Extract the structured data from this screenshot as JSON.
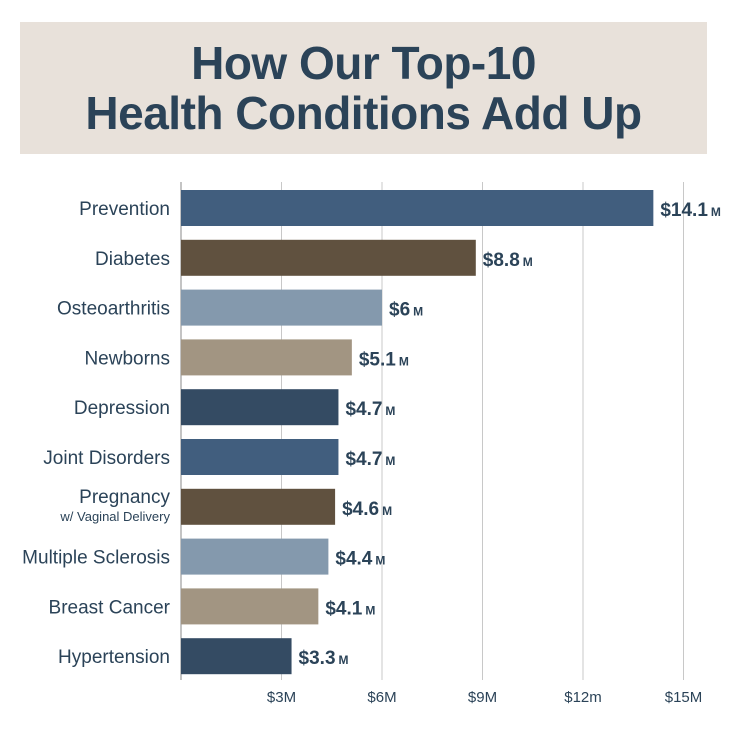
{
  "title": {
    "line1": "How Our Top-10",
    "line2": "Health Conditions Add Up"
  },
  "colors": {
    "title_bg": "#e8e1da",
    "text": "#2b4358",
    "grid": "#c8c8c8",
    "axis": "#8a8a8a"
  },
  "chart_data": {
    "type": "bar",
    "orientation": "horizontal",
    "categories": [
      {
        "label": "Prevention",
        "sub": ""
      },
      {
        "label": "Diabetes",
        "sub": ""
      },
      {
        "label": "Osteoarthritis",
        "sub": ""
      },
      {
        "label": "Newborns",
        "sub": ""
      },
      {
        "label": "Depression",
        "sub": ""
      },
      {
        "label": "Joint Disorders",
        "sub": ""
      },
      {
        "label": "Pregnancy",
        "sub": "w/ Vaginal Delivery"
      },
      {
        "label": "Multiple Sclerosis",
        "sub": ""
      },
      {
        "label": "Breast Cancer",
        "sub": ""
      },
      {
        "label": "Hypertension",
        "sub": ""
      }
    ],
    "values": [
      14.1,
      8.8,
      6,
      5.1,
      4.7,
      4.7,
      4.6,
      4.4,
      4.1,
      3.3
    ],
    "value_labels": [
      "$14.1",
      "$8.8",
      "$6",
      "$5.1",
      "$4.7",
      "$4.7",
      "$4.6",
      "$4.4",
      "$4.1",
      "$3.3"
    ],
    "value_unit": "M",
    "bar_colors": [
      "#415e7e",
      "#60513f",
      "#8499ad",
      "#a29582",
      "#344b63",
      "#415e7e",
      "#60513f",
      "#8499ad",
      "#a29582",
      "#344b63"
    ],
    "xticks": [
      3,
      6,
      9,
      12,
      15
    ],
    "xtick_labels": [
      "$3M",
      "$6M",
      "$9M",
      "$12m",
      "$15M"
    ],
    "xlim": [
      0,
      15
    ],
    "grid": true,
    "legend": "none"
  }
}
